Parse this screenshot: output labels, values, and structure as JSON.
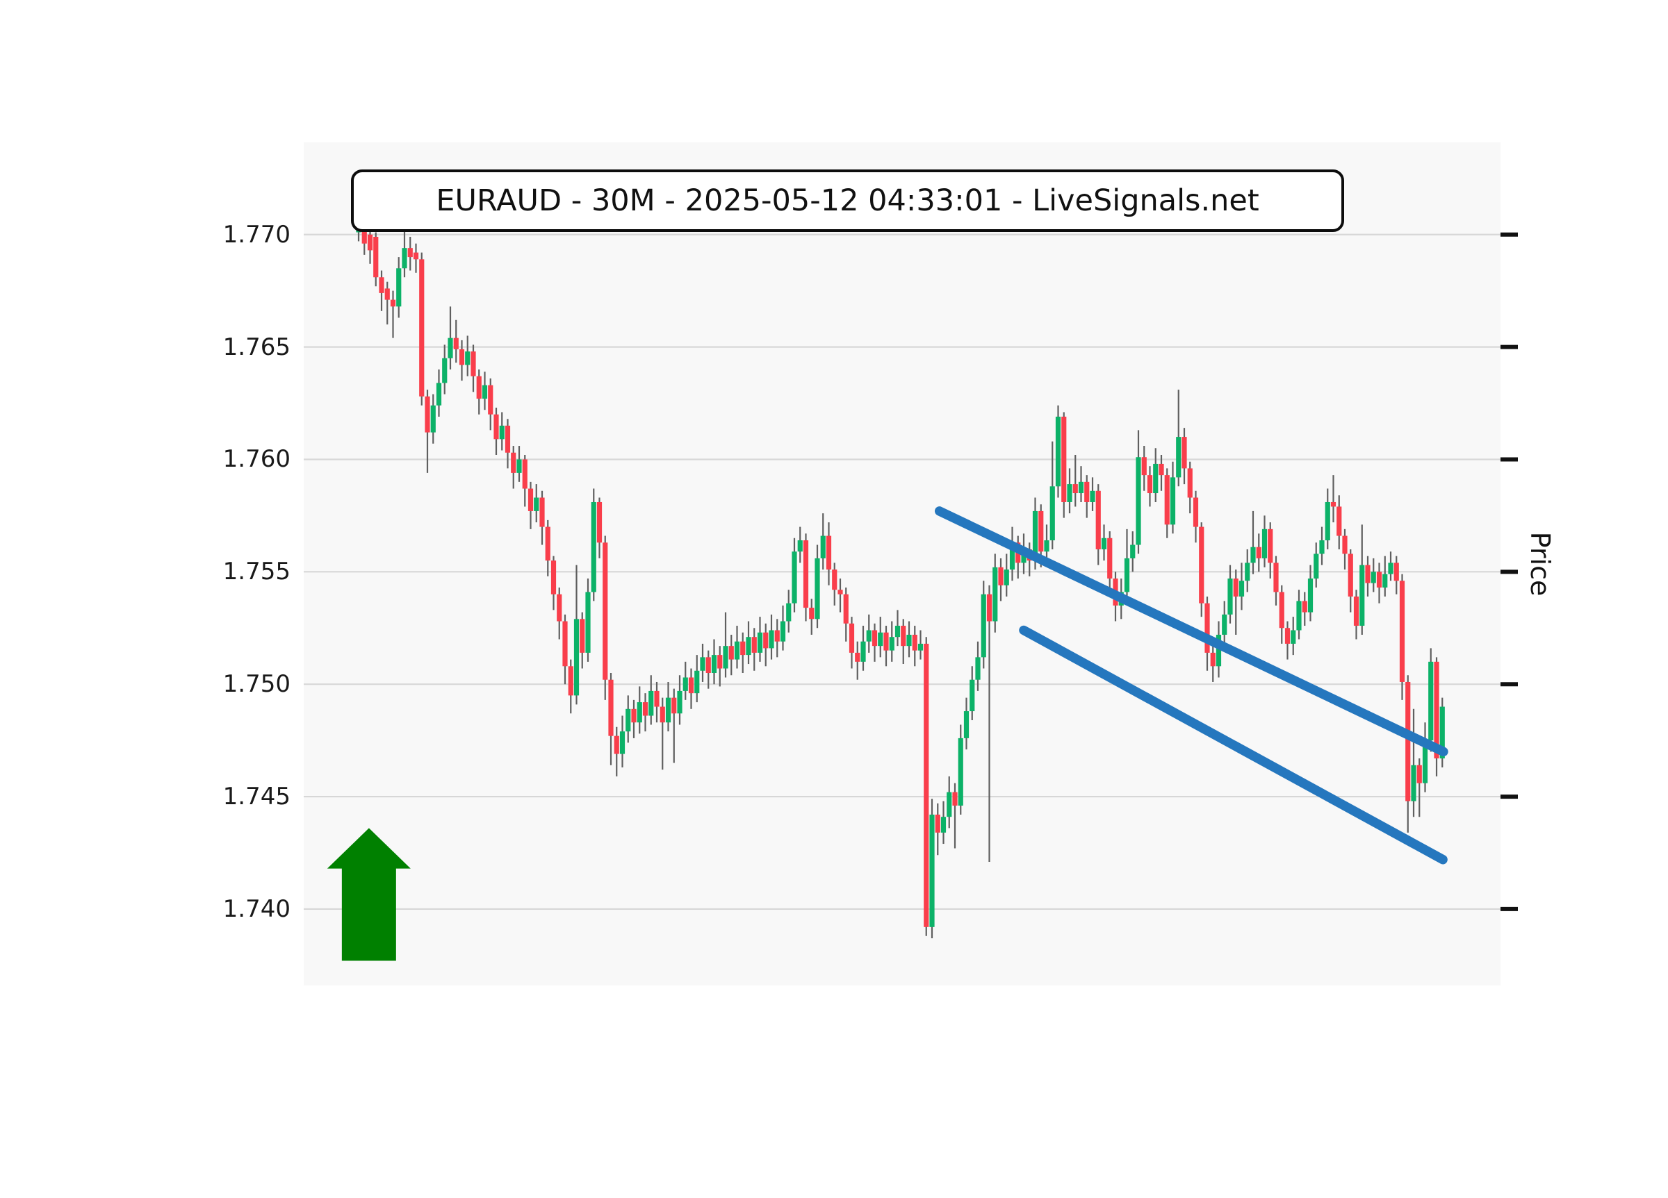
{
  "title": "EURAUD - 30M - 2025-05-12 04:33:01 - LiveSignals.net",
  "y_axis": {
    "label": "Price",
    "ticks": [
      "1.770",
      "1.765",
      "1.760",
      "1.755",
      "1.750",
      "1.745",
      "1.740"
    ]
  },
  "chart_data": {
    "type": "candlestick",
    "symbol": "EURAUD",
    "timeframe": "30M",
    "timestamp": "2025-05-12 04:33:01",
    "source": "LiveSignals.net",
    "ylabel": "Price",
    "ylim": [
      1.7366,
      1.7741
    ],
    "grid": true,
    "legend_position": "none",
    "colors": {
      "up": "#0cb268",
      "down": "#f93e4b",
      "wick": "#5f5f5f",
      "grid": "#d7d7d7",
      "plot_bg": "#f8f8f8",
      "trend_line": "#2577be",
      "arrow": "#008000",
      "tick": "#111111"
    },
    "candles": [
      [
        1.7701,
        1.7709,
        1.7697,
        1.7706
      ],
      [
        1.7706,
        1.7708,
        1.7691,
        1.7696
      ],
      [
        1.77,
        1.7703,
        1.7687,
        1.7693
      ],
      [
        1.7699,
        1.7701,
        1.7677,
        1.7681
      ],
      [
        1.7681,
        1.7684,
        1.7666,
        1.7674
      ],
      [
        1.7676,
        1.7679,
        1.766,
        1.7671
      ],
      [
        1.7671,
        1.7675,
        1.7654,
        1.7668
      ],
      [
        1.7668,
        1.769,
        1.7663,
        1.7685
      ],
      [
        1.7685,
        1.7702,
        1.7681,
        1.7694
      ],
      [
        1.7694,
        1.7699,
        1.7684,
        1.769
      ],
      [
        1.7692,
        1.7696,
        1.7683,
        1.7689
      ],
      [
        1.7689,
        1.7692,
        1.7624,
        1.7628
      ],
      [
        1.7628,
        1.7631,
        1.7594,
        1.7612
      ],
      [
        1.7612,
        1.7629,
        1.7607,
        1.7624
      ],
      [
        1.7624,
        1.764,
        1.7619,
        1.7634
      ],
      [
        1.7634,
        1.7651,
        1.7629,
        1.7645
      ],
      [
        1.7645,
        1.7668,
        1.764,
        1.7654
      ],
      [
        1.7654,
        1.7662,
        1.7643,
        1.7649
      ],
      [
        1.7649,
        1.7653,
        1.7635,
        1.7642
      ],
      [
        1.7642,
        1.7655,
        1.7637,
        1.7648
      ],
      [
        1.7648,
        1.7651,
        1.763,
        1.7637
      ],
      [
        1.7637,
        1.764,
        1.762,
        1.7627
      ],
      [
        1.7627,
        1.7639,
        1.7622,
        1.7633
      ],
      [
        1.7633,
        1.7636,
        1.7613,
        1.762
      ],
      [
        1.762,
        1.7623,
        1.7602,
        1.7609
      ],
      [
        1.7609,
        1.7621,
        1.7604,
        1.7615
      ],
      [
        1.7615,
        1.7618,
        1.7596,
        1.7603
      ],
      [
        1.7603,
        1.7606,
        1.7587,
        1.7594
      ],
      [
        1.7594,
        1.7606,
        1.759,
        1.76
      ],
      [
        1.76,
        1.7602,
        1.7579,
        1.7587
      ],
      [
        1.7587,
        1.759,
        1.7569,
        1.7577
      ],
      [
        1.7577,
        1.7589,
        1.7572,
        1.7583
      ],
      [
        1.7583,
        1.7586,
        1.7562,
        1.757
      ],
      [
        1.757,
        1.7573,
        1.7548,
        1.7555
      ],
      [
        1.7555,
        1.7557,
        1.7533,
        1.754
      ],
      [
        1.754,
        1.7543,
        1.752,
        1.7528
      ],
      [
        1.7528,
        1.7531,
        1.75,
        1.7508
      ],
      [
        1.7508,
        1.7511,
        1.7487,
        1.7495
      ],
      [
        1.7495,
        1.7553,
        1.7491,
        1.7529
      ],
      [
        1.7529,
        1.7532,
        1.7507,
        1.7514
      ],
      [
        1.7514,
        1.7547,
        1.751,
        1.7541
      ],
      [
        1.7541,
        1.7587,
        1.7537,
        1.7581
      ],
      [
        1.7581,
        1.7583,
        1.7556,
        1.7563
      ],
      [
        1.7563,
        1.7566,
        1.7493,
        1.7502
      ],
      [
        1.7502,
        1.7505,
        1.7464,
        1.7477
      ],
      [
        1.7477,
        1.7481,
        1.7459,
        1.7469
      ],
      [
        1.7469,
        1.7486,
        1.7463,
        1.7479
      ],
      [
        1.7479,
        1.7495,
        1.7474,
        1.7489
      ],
      [
        1.7489,
        1.7493,
        1.7476,
        1.7483
      ],
      [
        1.7483,
        1.7499,
        1.7478,
        1.7492
      ],
      [
        1.7492,
        1.7496,
        1.7479,
        1.7486
      ],
      [
        1.7486,
        1.7504,
        1.7482,
        1.7497
      ],
      [
        1.7497,
        1.7501,
        1.7483,
        1.749
      ],
      [
        1.749,
        1.7494,
        1.7462,
        1.7483
      ],
      [
        1.7483,
        1.7501,
        1.7479,
        1.7494
      ],
      [
        1.7494,
        1.7498,
        1.7465,
        1.7487
      ],
      [
        1.7487,
        1.7504,
        1.7482,
        1.7497
      ],
      [
        1.7497,
        1.751,
        1.7493,
        1.7503
      ],
      [
        1.7503,
        1.7507,
        1.7489,
        1.7496
      ],
      [
        1.7496,
        1.7513,
        1.7492,
        1.7506
      ],
      [
        1.7506,
        1.7518,
        1.7501,
        1.7512
      ],
      [
        1.7512,
        1.7515,
        1.7498,
        1.7505
      ],
      [
        1.7505,
        1.752,
        1.75,
        1.7513
      ],
      [
        1.7513,
        1.7517,
        1.7499,
        1.7507
      ],
      [
        1.7507,
        1.7532,
        1.7503,
        1.7517
      ],
      [
        1.7517,
        1.7522,
        1.7504,
        1.7511
      ],
      [
        1.7511,
        1.7526,
        1.7507,
        1.7519
      ],
      [
        1.7519,
        1.7523,
        1.7505,
        1.7513
      ],
      [
        1.7513,
        1.7528,
        1.7509,
        1.7521
      ],
      [
        1.7521,
        1.7525,
        1.7506,
        1.7514
      ],
      [
        1.7514,
        1.753,
        1.751,
        1.7523
      ],
      [
        1.7523,
        1.7527,
        1.7508,
        1.7516
      ],
      [
        1.7516,
        1.7531,
        1.7511,
        1.7524
      ],
      [
        1.7524,
        1.7529,
        1.7512,
        1.7519
      ],
      [
        1.7519,
        1.7535,
        1.7515,
        1.7528
      ],
      [
        1.7528,
        1.7542,
        1.7523,
        1.7536
      ],
      [
        1.7536,
        1.7565,
        1.7532,
        1.7559
      ],
      [
        1.7559,
        1.757,
        1.7554,
        1.7564
      ],
      [
        1.7564,
        1.7567,
        1.7528,
        1.7534
      ],
      [
        1.7534,
        1.7538,
        1.7522,
        1.7529
      ],
      [
        1.7529,
        1.7562,
        1.7525,
        1.7556
      ],
      [
        1.7556,
        1.7576,
        1.7551,
        1.7566
      ],
      [
        1.7566,
        1.7572,
        1.7544,
        1.7551
      ],
      [
        1.7551,
        1.7554,
        1.7535,
        1.7542
      ],
      [
        1.7542,
        1.7547,
        1.7532,
        1.754
      ],
      [
        1.754,
        1.7543,
        1.7519,
        1.7527
      ],
      [
        1.7527,
        1.753,
        1.7507,
        1.7514
      ],
      [
        1.7514,
        1.7519,
        1.7502,
        1.751
      ],
      [
        1.751,
        1.7526,
        1.7506,
        1.7519
      ],
      [
        1.7519,
        1.7531,
        1.7514,
        1.7524
      ],
      [
        1.7524,
        1.7527,
        1.751,
        1.7517
      ],
      [
        1.7517,
        1.753,
        1.7512,
        1.7523
      ],
      [
        1.7523,
        1.7526,
        1.7508,
        1.7515
      ],
      [
        1.7515,
        1.7528,
        1.751,
        1.7521
      ],
      [
        1.7521,
        1.7533,
        1.7517,
        1.7526
      ],
      [
        1.7526,
        1.7529,
        1.7509,
        1.7517
      ],
      [
        1.7517,
        1.7528,
        1.7512,
        1.7522
      ],
      [
        1.7522,
        1.7526,
        1.7508,
        1.7515
      ],
      [
        1.7515,
        1.7524,
        1.7511,
        1.7518
      ],
      [
        1.7518,
        1.7521,
        1.7388,
        1.7392
      ],
      [
        1.7392,
        1.7449,
        1.7387,
        1.7442
      ],
      [
        1.7442,
        1.7447,
        1.7424,
        1.7434
      ],
      [
        1.7434,
        1.7448,
        1.7429,
        1.7441
      ],
      [
        1.7441,
        1.7459,
        1.7436,
        1.7452
      ],
      [
        1.7452,
        1.7456,
        1.7427,
        1.7446
      ],
      [
        1.7446,
        1.7482,
        1.7442,
        1.7476
      ],
      [
        1.7476,
        1.7494,
        1.7471,
        1.7488
      ],
      [
        1.7488,
        1.7508,
        1.7484,
        1.7502
      ],
      [
        1.7502,
        1.7519,
        1.7497,
        1.7512
      ],
      [
        1.7512,
        1.7546,
        1.7507,
        1.754
      ],
      [
        1.754,
        1.7544,
        1.7421,
        1.7528
      ],
      [
        1.7528,
        1.7558,
        1.7523,
        1.7552
      ],
      [
        1.7552,
        1.7556,
        1.7537,
        1.7544
      ],
      [
        1.7544,
        1.7558,
        1.7539,
        1.7551
      ],
      [
        1.7551,
        1.757,
        1.7546,
        1.7563
      ],
      [
        1.7563,
        1.7566,
        1.7547,
        1.7554
      ],
      [
        1.7554,
        1.7567,
        1.7549,
        1.756
      ],
      [
        1.756,
        1.7563,
        1.7548,
        1.7555
      ],
      [
        1.7555,
        1.7583,
        1.7551,
        1.7577
      ],
      [
        1.7577,
        1.758,
        1.7552,
        1.7559
      ],
      [
        1.7559,
        1.7571,
        1.7554,
        1.7564
      ],
      [
        1.7564,
        1.7608,
        1.756,
        1.7588
      ],
      [
        1.7588,
        1.7624,
        1.7583,
        1.7619
      ],
      [
        1.7619,
        1.7621,
        1.7574,
        1.7581
      ],
      [
        1.7581,
        1.7596,
        1.7576,
        1.7589
      ],
      [
        1.7589,
        1.7602,
        1.7579,
        1.7585
      ],
      [
        1.7585,
        1.7597,
        1.7581,
        1.759
      ],
      [
        1.759,
        1.7593,
        1.7574,
        1.7581
      ],
      [
        1.7581,
        1.7592,
        1.7577,
        1.7586
      ],
      [
        1.7586,
        1.7589,
        1.7553,
        1.756
      ],
      [
        1.756,
        1.7571,
        1.7555,
        1.7565
      ],
      [
        1.7565,
        1.7568,
        1.754,
        1.7547
      ],
      [
        1.7547,
        1.755,
        1.7528,
        1.7535
      ],
      [
        1.7535,
        1.7547,
        1.7529,
        1.7541
      ],
      [
        1.7541,
        1.7569,
        1.7536,
        1.7556
      ],
      [
        1.7556,
        1.7568,
        1.755,
        1.7562
      ],
      [
        1.7562,
        1.7613,
        1.7558,
        1.7601
      ],
      [
        1.7601,
        1.7606,
        1.7586,
        1.7593
      ],
      [
        1.7593,
        1.7597,
        1.7579,
        1.7585
      ],
      [
        1.7585,
        1.7605,
        1.7581,
        1.7598
      ],
      [
        1.7598,
        1.7602,
        1.7586,
        1.7593
      ],
      [
        1.7593,
        1.7596,
        1.7565,
        1.7571
      ],
      [
        1.7571,
        1.7599,
        1.7567,
        1.7592
      ],
      [
        1.7592,
        1.7631,
        1.7588,
        1.761
      ],
      [
        1.761,
        1.7614,
        1.7589,
        1.7596
      ],
      [
        1.7596,
        1.7599,
        1.7576,
        1.7583
      ],
      [
        1.7583,
        1.7586,
        1.7563,
        1.757
      ],
      [
        1.757,
        1.7572,
        1.753,
        1.7536
      ],
      [
        1.7536,
        1.7539,
        1.7506,
        1.7514
      ],
      [
        1.7514,
        1.7518,
        1.7501,
        1.7508
      ],
      [
        1.7508,
        1.7528,
        1.7503,
        1.7522
      ],
      [
        1.7522,
        1.7537,
        1.7517,
        1.7531
      ],
      [
        1.7531,
        1.7553,
        1.7527,
        1.7547
      ],
      [
        1.7547,
        1.7551,
        1.7522,
        1.7539
      ],
      [
        1.7539,
        1.7554,
        1.7533,
        1.7546
      ],
      [
        1.7546,
        1.756,
        1.7541,
        1.7554
      ],
      [
        1.7554,
        1.7577,
        1.7549,
        1.7561
      ],
      [
        1.7561,
        1.7567,
        1.755,
        1.7556
      ],
      [
        1.7556,
        1.7575,
        1.7552,
        1.7569
      ],
      [
        1.7569,
        1.7572,
        1.7547,
        1.7554
      ],
      [
        1.7554,
        1.7557,
        1.7535,
        1.7541
      ],
      [
        1.7541,
        1.7544,
        1.7518,
        1.7525
      ],
      [
        1.7525,
        1.7528,
        1.7511,
        1.7518
      ],
      [
        1.7518,
        1.753,
        1.7513,
        1.7524
      ],
      [
        1.7524,
        1.7542,
        1.752,
        1.7537
      ],
      [
        1.7537,
        1.7541,
        1.7526,
        1.7532
      ],
      [
        1.7532,
        1.7553,
        1.7528,
        1.7547
      ],
      [
        1.7547,
        1.7563,
        1.7543,
        1.7558
      ],
      [
        1.7558,
        1.757,
        1.7553,
        1.7564
      ],
      [
        1.7564,
        1.7587,
        1.756,
        1.7581
      ],
      [
        1.7581,
        1.7593,
        1.7572,
        1.7579
      ],
      [
        1.7579,
        1.7584,
        1.756,
        1.7566
      ],
      [
        1.7566,
        1.7569,
        1.7551,
        1.7558
      ],
      [
        1.7558,
        1.756,
        1.7532,
        1.7539
      ],
      [
        1.7539,
        1.7542,
        1.752,
        1.7526
      ],
      [
        1.7526,
        1.7571,
        1.7522,
        1.7553
      ],
      [
        1.7553,
        1.7557,
        1.7539,
        1.7545
      ],
      [
        1.7545,
        1.7556,
        1.7541,
        1.755
      ],
      [
        1.755,
        1.7554,
        1.7536,
        1.7543
      ],
      [
        1.7543,
        1.7557,
        1.7539,
        1.7549
      ],
      [
        1.7549,
        1.7559,
        1.7546,
        1.7554
      ],
      [
        1.7554,
        1.7557,
        1.754,
        1.7546
      ],
      [
        1.7546,
        1.7549,
        1.7493,
        1.7501
      ],
      [
        1.7501,
        1.7504,
        1.7434,
        1.7448
      ],
      [
        1.7448,
        1.7489,
        1.7441,
        1.7464
      ],
      [
        1.7464,
        1.7467,
        1.7441,
        1.7456
      ],
      [
        1.7456,
        1.7483,
        1.7452,
        1.7475
      ],
      [
        1.7475,
        1.7516,
        1.747,
        1.751
      ],
      [
        1.751,
        1.7512,
        1.7459,
        1.7467
      ],
      [
        1.7467,
        1.7494,
        1.7463,
        1.749
      ]
    ],
    "trend_lines": [
      {
        "name": "upper-channel-line",
        "x1": 101.3,
        "price1": 1.7577,
        "x2": 189.2,
        "price2": 1.747
      },
      {
        "name": "lower-channel-line",
        "x1": 116.0,
        "price1": 1.7524,
        "x2": 189.1,
        "price2": 1.7422
      }
    ],
    "arrow_annotation": {
      "direction": "up",
      "x": 1.8,
      "tip_price": 1.7436,
      "head_base_price": 1.7418,
      "tail_price": 1.7377
    }
  }
}
